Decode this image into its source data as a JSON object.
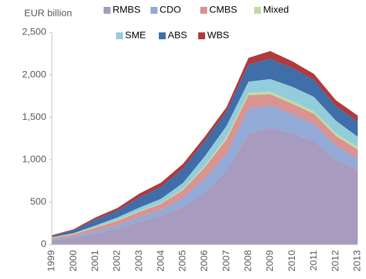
{
  "chart_data": {
    "type": "stacked_area",
    "y_axis_label": "EUR billion",
    "categories": [
      "1999",
      "2000",
      "2001",
      "2002",
      "2003",
      "2004",
      "2005",
      "2006",
      "2007",
      "2008",
      "2009",
      "2010",
      "2011",
      "2012",
      "2013"
    ],
    "series": [
      {
        "name": "RMBS",
        "color": "#a89bc0",
        "values": [
          50,
          80,
          130,
          190,
          270,
          340,
          440,
          610,
          870,
          1310,
          1380,
          1310,
          1220,
          1000,
          880
        ]
      },
      {
        "name": "CDO",
        "color": "#93a9d6",
        "values": [
          10,
          15,
          30,
          40,
          55,
          70,
          110,
          170,
          200,
          290,
          260,
          230,
          200,
          170,
          130
        ]
      },
      {
        "name": "CMBS",
        "color": "#d99391",
        "values": [
          15,
          25,
          40,
          50,
          60,
          70,
          90,
          130,
          170,
          160,
          130,
          120,
          120,
          110,
          110
        ]
      },
      {
        "name": "Mixed",
        "color": "#c4dba0",
        "values": [
          5,
          5,
          5,
          10,
          10,
          10,
          15,
          20,
          30,
          30,
          30,
          30,
          30,
          30,
          30
        ]
      },
      {
        "name": "SME",
        "color": "#93cddb",
        "values": [
          5,
          10,
          20,
          30,
          40,
          50,
          70,
          110,
          130,
          130,
          150,
          170,
          170,
          150,
          120
        ]
      },
      {
        "name": "ABS",
        "color": "#3f6ea8",
        "values": [
          15,
          30,
          70,
          80,
          120,
          140,
          170,
          180,
          170,
          200,
          240,
          220,
          200,
          170,
          180
        ]
      },
      {
        "name": "WBS",
        "color": "#b03a3e",
        "values": [
          10,
          15,
          25,
          30,
          45,
          50,
          55,
          50,
          50,
          80,
          90,
          80,
          70,
          70,
          70
        ]
      }
    ],
    "ylim": [
      0,
      2500
    ],
    "yticks": [
      0,
      500,
      {
        "value": 1000,
        "label": "1,000"
      },
      {
        "value": 1500,
        "label": "1,500"
      },
      {
        "value": 2000,
        "label": "2,000"
      },
      {
        "value": 2500,
        "label": "2,500"
      }
    ],
    "grid": false
  }
}
